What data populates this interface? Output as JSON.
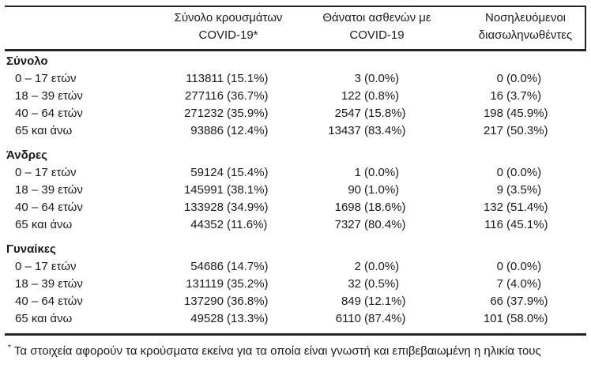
{
  "table": {
    "headers": {
      "cases": {
        "line1": "Σύνολο κρουσμάτων",
        "line2": "COVID-19*"
      },
      "deaths": {
        "line1": "Θάνατοι ασθενών με",
        "line2": "COVID-19"
      },
      "intubated": {
        "line1": "Νοσηλευόμενοι",
        "line2": "διασωληνωθέντες"
      }
    },
    "sections": [
      {
        "label": "Σύνολο",
        "rows": [
          {
            "age": "0 – 17 ετών",
            "cases_n": "113811",
            "cases_pct": "(15.1%)",
            "deaths_n": "3",
            "deaths_pct": "(0.0%)",
            "intubated_n": "0",
            "intubated_pct": "(0.0%)"
          },
          {
            "age": "18 – 39 ετών",
            "cases_n": "277116",
            "cases_pct": "(36.7%)",
            "deaths_n": "122",
            "deaths_pct": "(0.8%)",
            "intubated_n": "16",
            "intubated_pct": "(3.7%)"
          },
          {
            "age": "40 – 64 ετών",
            "cases_n": "271232",
            "cases_pct": "(35.9%)",
            "deaths_n": "2547",
            "deaths_pct": "(15.8%)",
            "intubated_n": "198",
            "intubated_pct": "(45.9%)"
          },
          {
            "age": "65 και άνω",
            "cases_n": "93886",
            "cases_pct": "(12.4%)",
            "deaths_n": "13437",
            "deaths_pct": "(83.4%)",
            "intubated_n": "217",
            "intubated_pct": "(50.3%)"
          }
        ]
      },
      {
        "label": "Άνδρες",
        "rows": [
          {
            "age": "0 – 17 ετών",
            "cases_n": "59124",
            "cases_pct": "(15.4%)",
            "deaths_n": "1",
            "deaths_pct": "(0.0%)",
            "intubated_n": "0",
            "intubated_pct": "(0.0%)"
          },
          {
            "age": "18 – 39 ετών",
            "cases_n": "145991",
            "cases_pct": "(38.1%)",
            "deaths_n": "90",
            "deaths_pct": "(1.0%)",
            "intubated_n": "9",
            "intubated_pct": "(3.5%)"
          },
          {
            "age": "40 – 64 ετών",
            "cases_n": "133928",
            "cases_pct": "(34.9%)",
            "deaths_n": "1698",
            "deaths_pct": "(18.6%)",
            "intubated_n": "132",
            "intubated_pct": "(51.4%)"
          },
          {
            "age": "65 και άνω",
            "cases_n": "44352",
            "cases_pct": "(11.6%)",
            "deaths_n": "7327",
            "deaths_pct": "(80.4%)",
            "intubated_n": "116",
            "intubated_pct": "(45.1%)"
          }
        ]
      },
      {
        "label": "Γυναίκες",
        "rows": [
          {
            "age": "0 – 17 ετών",
            "cases_n": "54686",
            "cases_pct": "(14.7%)",
            "deaths_n": "2",
            "deaths_pct": "(0.0%)",
            "intubated_n": "0",
            "intubated_pct": "(0.0%)"
          },
          {
            "age": "18 – 39 ετών",
            "cases_n": "131119",
            "cases_pct": "(35.2%)",
            "deaths_n": "32",
            "deaths_pct": "(0.5%)",
            "intubated_n": "7",
            "intubated_pct": "(4.0%)"
          },
          {
            "age": "40 – 64 ετών",
            "cases_n": "137290",
            "cases_pct": "(36.8%)",
            "deaths_n": "849",
            "deaths_pct": "(12.1%)",
            "intubated_n": "66",
            "intubated_pct": "(37.9%)"
          },
          {
            "age": "65 και άνω",
            "cases_n": "49528",
            "cases_pct": "(13.3%)",
            "deaths_n": "6110",
            "deaths_pct": "(87.4%)",
            "intubated_n": "101",
            "intubated_pct": "(58.0%)"
          }
        ]
      }
    ],
    "footnote": {
      "marker": "*",
      "text": "Τα στοιχεία αφορούν τα κρούσματα εκείνα για τα οποία είναι γνωστή και επιβεβαιωμένη η ηλικία τους"
    }
  }
}
